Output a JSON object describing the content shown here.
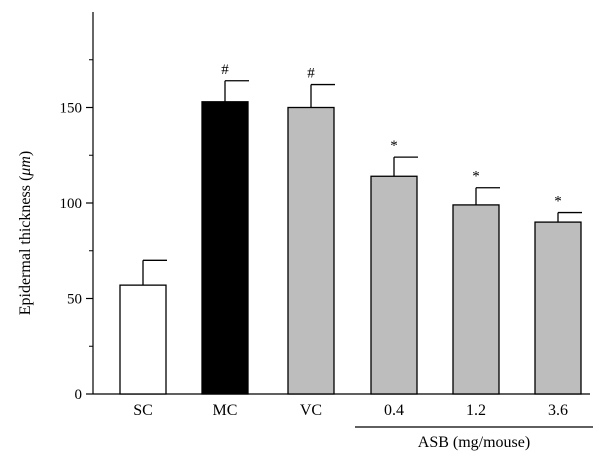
{
  "chart_data": {
    "type": "bar",
    "ylabel_text": "Epidermal thickness (",
    "ylabel_unit": "μm",
    "ylabel_close": ")",
    "categories": [
      "SC",
      "MC",
      "VC",
      "0.4",
      "1.2",
      "3.6"
    ],
    "values": [
      57,
      153,
      150,
      114,
      99,
      90
    ],
    "error_plus": [
      13,
      11,
      12,
      10,
      9,
      5
    ],
    "markers": [
      "",
      "#",
      "#",
      "*",
      "*",
      "*"
    ],
    "bar_colors": [
      "#ffffff",
      "#000000",
      "#bdbdbd",
      "#bdbdbd",
      "#bdbdbd",
      "#bdbdbd"
    ],
    "ylim": [
      0,
      200
    ],
    "yticks": [
      0,
      50,
      100,
      150
    ],
    "group_label": "ASB (mg/mouse)",
    "group_categories": [
      "0.4",
      "1.2",
      "3.6"
    ],
    "grid": false,
    "legend": false
  }
}
